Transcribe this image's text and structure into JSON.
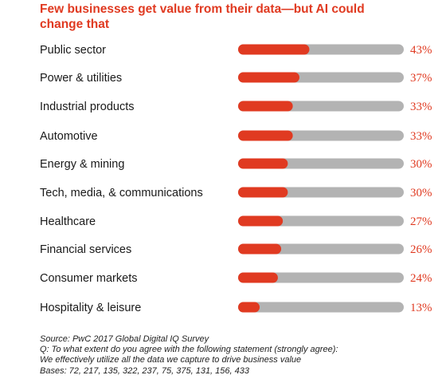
{
  "title": "Few businesses get value from their data—but AI could change that",
  "colors": {
    "accent": "#e03a21",
    "track": "#b3b3b3",
    "label": "#1a1a1a",
    "value": "#e03a21"
  },
  "chart_data": {
    "type": "bar",
    "orientation": "horizontal",
    "title": "Few businesses get value from their data—but AI could change that",
    "xlabel": "",
    "ylabel": "",
    "xlim": [
      0,
      100
    ],
    "grid": false,
    "categories": [
      "Public sector",
      "Power & utilities",
      "Industrial products",
      "Automotive",
      "Energy & mining",
      "Tech, media, & communications",
      "Healthcare",
      "Financial services",
      "Consumer markets",
      "Hospitality & leisure"
    ],
    "values": [
      43,
      37,
      33,
      33,
      30,
      30,
      27,
      26,
      24,
      13
    ],
    "value_labels": [
      "43%",
      "37%",
      "33%",
      "33%",
      "30%",
      "30%",
      "27%",
      "26%",
      "24%",
      "13%"
    ]
  },
  "source": {
    "lines": [
      "Source: PwC 2017 Global Digital IQ Survey",
      "Q: To what extent do you agree with the following statement (strongly agree):",
      "We effectively utilize all the data we capture to drive business value",
      "Bases: 72, 217, 135, 322, 237, 75, 375, 131, 156, 433"
    ]
  }
}
